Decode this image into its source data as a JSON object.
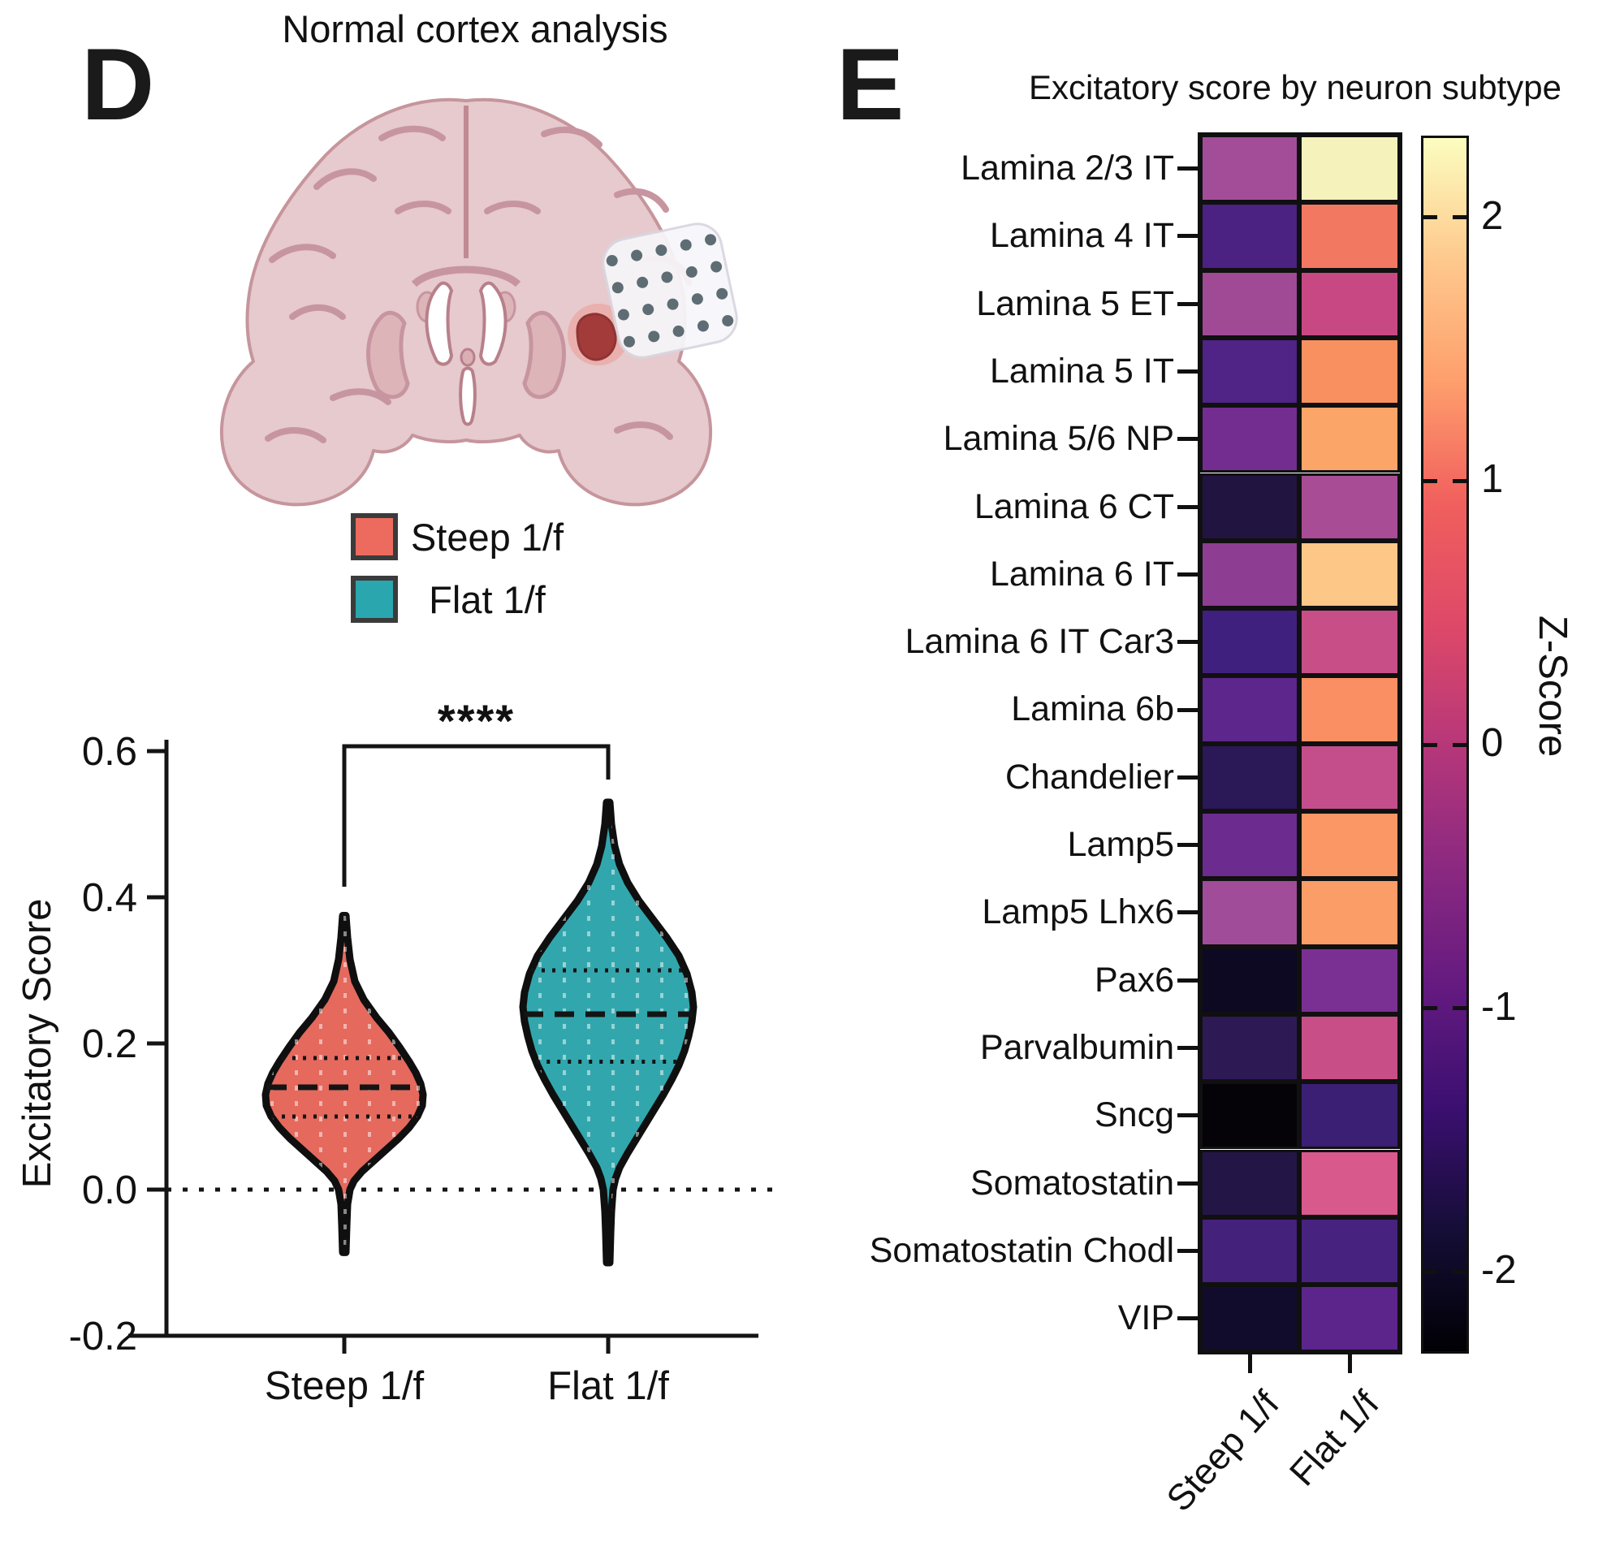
{
  "panel_d": {
    "label": "D",
    "title": "Normal cortex analysis",
    "legend": [
      {
        "label": "Steep 1/f",
        "color": "#EC6A5E"
      },
      {
        "label": "Flat 1/f",
        "color": "#2AA7AE"
      }
    ]
  },
  "panel_e": {
    "label": "E"
  },
  "chart_data": [
    {
      "type": "violin",
      "title": "",
      "xlabel": "",
      "ylabel": "Excitatory Score",
      "ylim": [
        -0.2,
        0.6
      ],
      "yticks": [
        "0.6",
        "0.4",
        "0.2",
        "0.0",
        "-0.2"
      ],
      "ytick_values": [
        0.6,
        0.4,
        0.2,
        0.0,
        -0.2
      ],
      "zero_reference_line": 0.0,
      "significance_label": "****",
      "categories": [
        "Steep 1/f",
        "Flat 1/f"
      ],
      "series": [
        {
          "name": "Steep 1/f",
          "fill": "#E5695D",
          "median": 0.14,
          "q1": 0.1,
          "q3": 0.18,
          "min": -0.09,
          "max": 0.375,
          "profile": [
            [
              0.375,
              2
            ],
            [
              0.345,
              4
            ],
            [
              0.315,
              7
            ],
            [
              0.285,
              13
            ],
            [
              0.26,
              24
            ],
            [
              0.235,
              40
            ],
            [
              0.215,
              55
            ],
            [
              0.195,
              68
            ],
            [
              0.175,
              80
            ],
            [
              0.16,
              88
            ],
            [
              0.145,
              94
            ],
            [
              0.13,
              97
            ],
            [
              0.115,
              96
            ],
            [
              0.1,
              90
            ],
            [
              0.085,
              80
            ],
            [
              0.07,
              67
            ],
            [
              0.055,
              52
            ],
            [
              0.04,
              37
            ],
            [
              0.025,
              22
            ],
            [
              0.012,
              12
            ],
            [
              0.0,
              7
            ],
            [
              -0.02,
              4
            ],
            [
              -0.05,
              3
            ],
            [
              -0.086,
              2
            ]
          ]
        },
        {
          "name": "Flat 1/f",
          "fill": "#31A7AD",
          "median": 0.24,
          "q1": 0.175,
          "q3": 0.3,
          "min": -0.1,
          "max": 0.53,
          "profile": [
            [
              0.53,
              2
            ],
            [
              0.5,
              4
            ],
            [
              0.47,
              8
            ],
            [
              0.445,
              14
            ],
            [
              0.42,
              24
            ],
            [
              0.395,
              38
            ],
            [
              0.37,
              55
            ],
            [
              0.345,
              72
            ],
            [
              0.32,
              87
            ],
            [
              0.295,
              97
            ],
            [
              0.27,
              103
            ],
            [
              0.25,
              105
            ],
            [
              0.23,
              103
            ],
            [
              0.21,
              99
            ],
            [
              0.19,
              94
            ],
            [
              0.17,
              87
            ],
            [
              0.15,
              78
            ],
            [
              0.13,
              68
            ],
            [
              0.11,
              57
            ],
            [
              0.09,
              46
            ],
            [
              0.07,
              35
            ],
            [
              0.05,
              24
            ],
            [
              0.03,
              14
            ],
            [
              0.015,
              9
            ],
            [
              0.0,
              6
            ],
            [
              -0.03,
              4
            ],
            [
              -0.06,
              3
            ],
            [
              -0.1,
              2
            ]
          ]
        }
      ]
    },
    {
      "type": "heatmap",
      "title": "Excitatory score by neuron subtype",
      "columns": [
        "Steep 1/f",
        "Flat 1/f"
      ],
      "rows": [
        {
          "label": "Lamina 2/3 IT",
          "z": [
            0.3,
            2.2
          ],
          "colors": [
            "#A34D99",
            "#F6F2BB"
          ]
        },
        {
          "label": "Lamina 4 IT",
          "z": [
            -0.9,
            1.3
          ],
          "colors": [
            "#4B2182",
            "#F37862"
          ]
        },
        {
          "label": "Lamina 5 ET",
          "z": [
            0.3,
            0.7
          ],
          "colors": [
            "#A04A96",
            "#C84884"
          ]
        },
        {
          "label": "Lamina 5 IT",
          "z": [
            -0.85,
            1.5
          ],
          "colors": [
            "#502386",
            "#F9905F"
          ]
        },
        {
          "label": "Lamina 5/6 NP",
          "z": [
            -0.4,
            1.6
          ],
          "colors": [
            "#732D90",
            "#FBA569"
          ]
        },
        {
          "label": "Lamina 6 CT",
          "z": [
            -1.7,
            0.3
          ],
          "colors": [
            "#221440",
            "#A84C96"
          ]
        },
        {
          "label": "Lamina 6 IT",
          "z": [
            0.0,
            1.9
          ],
          "colors": [
            "#8D3E92",
            "#FDC787"
          ]
        },
        {
          "label": "Lamina 6 IT Car3",
          "z": [
            -1.05,
            0.7
          ],
          "colors": [
            "#40207E",
            "#C74E86"
          ]
        },
        {
          "label": "Lamina 6b",
          "z": [
            -0.7,
            1.4
          ],
          "colors": [
            "#5D268C",
            "#F98F62"
          ]
        },
        {
          "label": "Chandelier",
          "z": [
            -1.5,
            0.6
          ],
          "colors": [
            "#2B1857",
            "#C34E8B"
          ]
        },
        {
          "label": "Lamp5",
          "z": [
            -0.5,
            1.5
          ],
          "colors": [
            "#6C2B8F",
            "#FA9764"
          ]
        },
        {
          "label": "Lamp5 Lhx6",
          "z": [
            0.3,
            1.55
          ],
          "colors": [
            "#A14C98",
            "#FA9D66"
          ]
        },
        {
          "label": "Pax6",
          "z": [
            -2.0,
            -0.3
          ],
          "colors": [
            "#0D0923",
            "#7A3092"
          ]
        },
        {
          "label": "Parvalbumin",
          "z": [
            -1.5,
            0.7
          ],
          "colors": [
            "#2D1A55",
            "#C74E86"
          ]
        },
        {
          "label": "Sncg",
          "z": [
            -2.25,
            -1.1
          ],
          "colors": [
            "#050308",
            "#3A1F74"
          ]
        },
        {
          "label": "Somatostatin",
          "z": [
            -1.65,
            0.8
          ],
          "colors": [
            "#231646",
            "#D85A8C"
          ]
        },
        {
          "label": "Somatostatin Chodl",
          "z": [
            -1.0,
            -0.95
          ],
          "colors": [
            "#44217B",
            "#47237F"
          ]
        },
        {
          "label": "VIP",
          "z": [
            -1.9,
            -0.7
          ],
          "colors": [
            "#110C2B",
            "#5C258C"
          ]
        }
      ],
      "colorbar": {
        "label": "Z-Score",
        "ticks": [
          2,
          1,
          0,
          -1,
          -2
        ],
        "range_top": 2.31,
        "range_bottom": -2.31,
        "gradient_top_to_bottom": [
          "#FCFDBF",
          "#FEC98D",
          "#FE9F6D",
          "#F1605D",
          "#DE4968",
          "#B73779",
          "#8C2981",
          "#641A80",
          "#3B0F70",
          "#150E37",
          "#000004"
        ]
      }
    }
  ]
}
